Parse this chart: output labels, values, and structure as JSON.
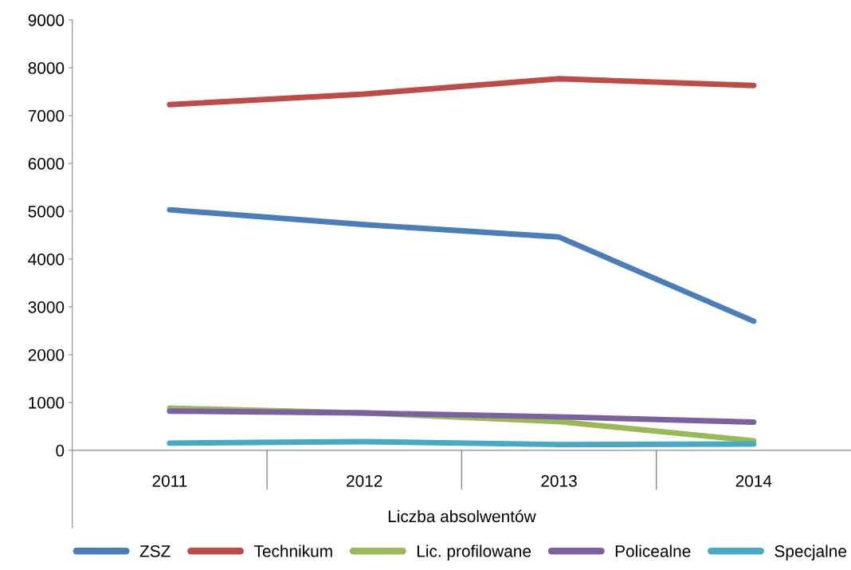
{
  "chart_data": {
    "type": "line",
    "xlabel": "Liczba absolwentów",
    "categories": [
      "2011",
      "2012",
      "2013",
      "2014"
    ],
    "series": [
      {
        "name": "ZSZ",
        "color": "#4a7ebb",
        "values": [
          5030,
          4720,
          4460,
          2700
        ]
      },
      {
        "name": "Technikum",
        "color": "#be4b48",
        "values": [
          7230,
          7450,
          7770,
          7630
        ]
      },
      {
        "name": "Lic. profilowane",
        "color": "#98b954",
        "values": [
          880,
          780,
          600,
          200
        ]
      },
      {
        "name": "Policealne",
        "color": "#7d60a0",
        "values": [
          820,
          780,
          700,
          590
        ]
      },
      {
        "name": "Specjalne",
        "color": "#46aac5",
        "values": [
          150,
          180,
          120,
          130
        ]
      }
    ],
    "ylim": [
      0,
      9000
    ],
    "yticks": [
      0,
      1000,
      2000,
      3000,
      4000,
      5000,
      6000,
      7000,
      8000,
      9000
    ],
    "grid": false,
    "legend": "bottom",
    "marker": "none",
    "line_style": "solid"
  }
}
